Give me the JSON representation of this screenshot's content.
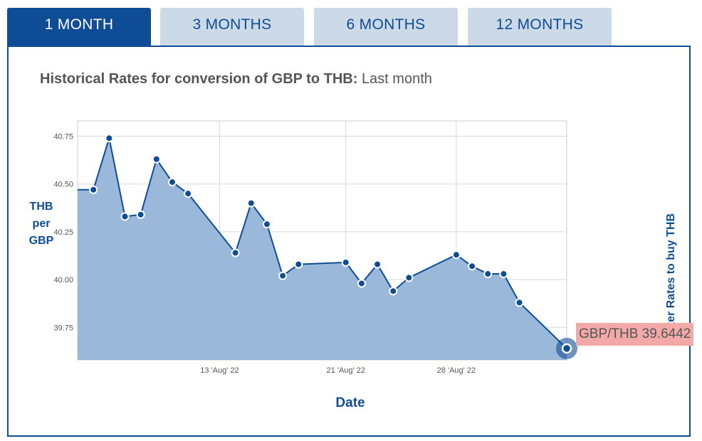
{
  "tabs": [
    {
      "label": "1 MONTH",
      "active": true
    },
    {
      "label": "3 MONTHS",
      "active": false
    },
    {
      "label": "6 MONTHS",
      "active": false
    },
    {
      "label": "12 MONTHS",
      "active": false
    }
  ],
  "heading": {
    "title": "Historical Rates for conversion of GBP to THB:",
    "period": "Last month"
  },
  "axis": {
    "ylabel_lines": [
      "THB",
      "per",
      "GBP"
    ],
    "xlabel": "Date",
    "side_note": "Better Rates to buy THB"
  },
  "tooltip": "GBP/THB 39.6442",
  "colors": {
    "accent": "#0f4c96",
    "tab_inactive": "#ccd9e7",
    "area_fill": "#9ab8da",
    "tooltip_bg": "#f4a9a9"
  },
  "chart_data": {
    "type": "area",
    "title": "Historical Rates for conversion of GBP to THB: Last month",
    "xlabel": "Date",
    "ylabel": "THB per GBP",
    "ylim": [
      39.58,
      40.83
    ],
    "yticks": [
      39.75,
      40.0,
      40.25,
      40.5,
      40.75
    ],
    "ytick_labels": [
      "39.75",
      "40.00",
      "40.25",
      "40.50",
      "40.75"
    ],
    "xlim": [
      "2022-08-04",
      "2022-09-04"
    ],
    "xticks": [
      "2022-08-13",
      "2022-08-21",
      "2022-08-28"
    ],
    "xtick_labels": [
      "13 'Aug' 22",
      "21 'Aug' 22",
      "28 'Aug' 22"
    ],
    "grid": true,
    "series": [
      {
        "x": [
          "2022-08-05",
          "2022-08-06",
          "2022-08-07",
          "2022-08-08",
          "2022-08-09",
          "2022-08-10",
          "2022-08-11",
          "2022-08-14",
          "2022-08-15",
          "2022-08-16",
          "2022-08-17",
          "2022-08-18",
          "2022-08-21",
          "2022-08-22",
          "2022-08-23",
          "2022-08-24",
          "2022-08-25",
          "2022-08-28",
          "2022-08-29",
          "2022-08-30",
          "2022-08-31",
          "2022-09-01",
          "2022-09-04"
        ],
        "y": [
          40.47,
          40.74,
          40.33,
          40.34,
          40.63,
          40.51,
          40.45,
          40.14,
          40.4,
          40.29,
          40.02,
          40.08,
          40.09,
          39.98,
          40.08,
          39.94,
          40.01,
          40.13,
          40.07,
          40.03,
          40.03,
          39.88,
          39.64
        ]
      }
    ]
  }
}
